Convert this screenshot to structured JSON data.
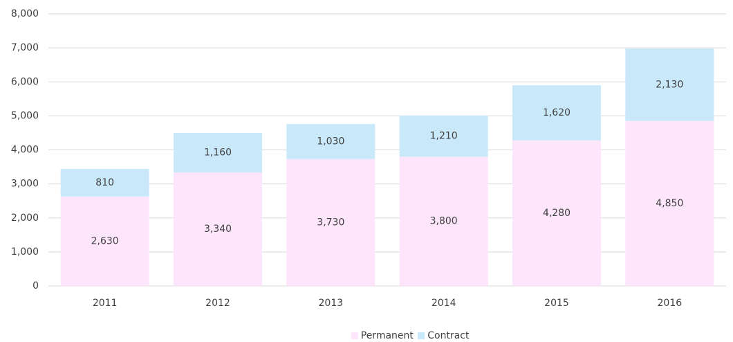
{
  "chart_data": {
    "type": "stacked_bar",
    "categories": [
      "2011",
      "2012",
      "2013",
      "2014",
      "2015",
      "2016"
    ],
    "series": [
      {
        "name": "Permanent",
        "color": "#fde6fb",
        "values": [
          2630,
          3340,
          3730,
          3800,
          4280,
          4850
        ],
        "value_labels": [
          "2,630",
          "3,340",
          "3,730",
          "3,800",
          "4,280",
          "4,850"
        ]
      },
      {
        "name": "Contract",
        "color": "#c9e9fb",
        "values": [
          810,
          1160,
          1030,
          1210,
          1620,
          2130
        ],
        "value_labels": [
          "810",
          "1,160",
          "1,030",
          "1,210",
          "1,620",
          "2,130"
        ]
      }
    ],
    "ylim": [
      0,
      8000
    ],
    "yticks": [
      0,
      {
        "value": 1000,
        "label": "1,000"
      },
      {
        "value": 2000,
        "label": "2,000"
      },
      {
        "value": 3000,
        "label": "3,000"
      },
      {
        "value": 4000,
        "label": "4,000"
      },
      {
        "value": 5000,
        "label": "5,000"
      },
      {
        "value": 6000,
        "label": "6,000"
      },
      {
        "value": 7000,
        "label": "7,000"
      },
      {
        "value": 8000,
        "label": "8,000"
      }
    ],
    "grid": true,
    "legend": "bottom"
  }
}
